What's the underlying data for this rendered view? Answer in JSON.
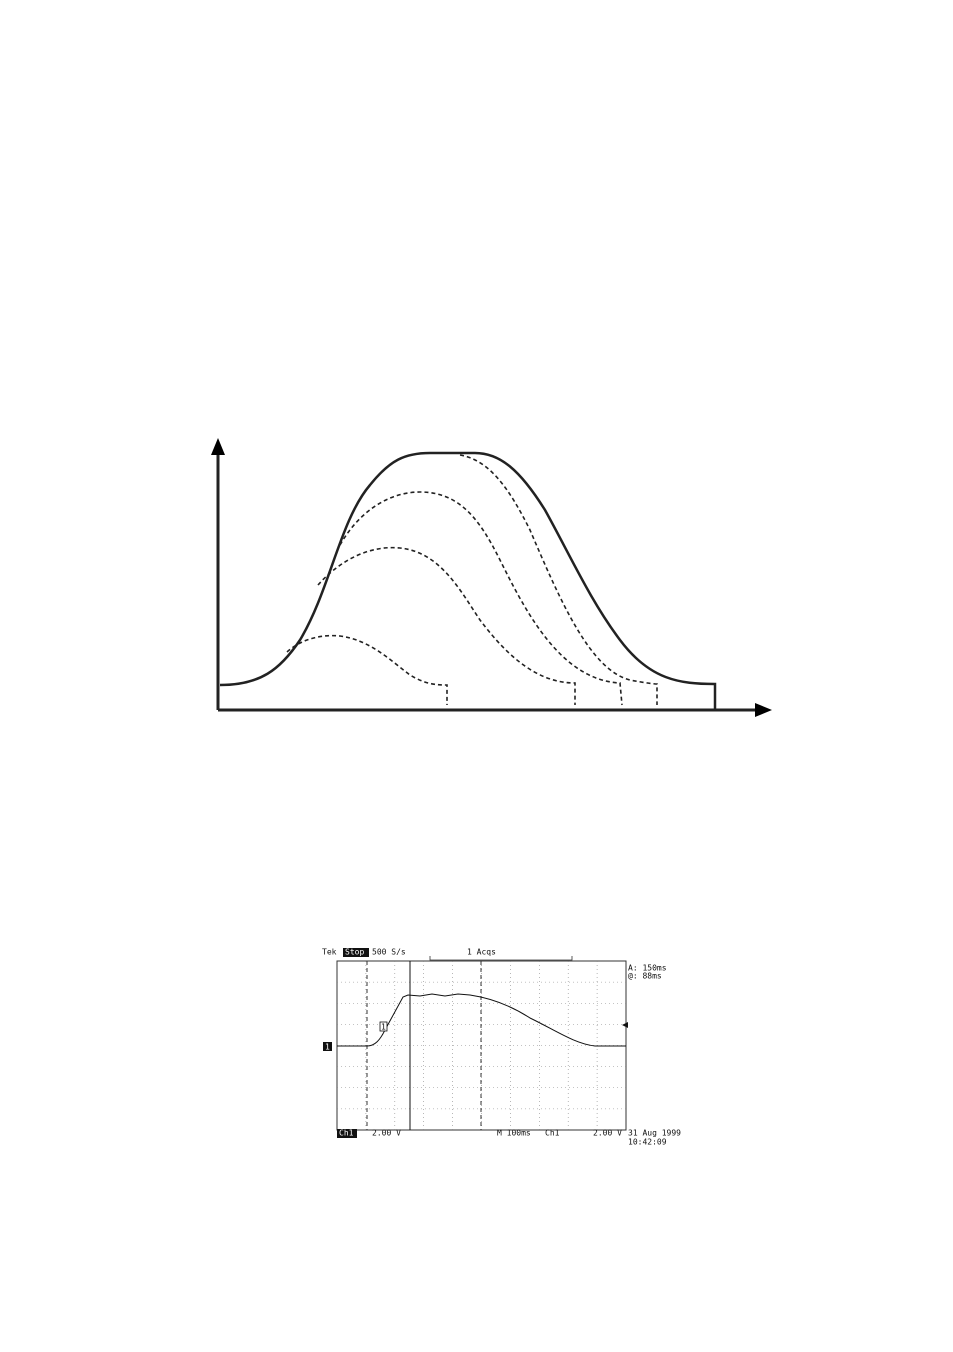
{
  "oscilloscope": {
    "header": {
      "brand": "Tek",
      "status": "Stop",
      "sample_rate": "500 S/s",
      "acquisitions": "1 Acqs"
    },
    "cursor": {
      "delta": "A: 150ms",
      "at": "@: 88ms"
    },
    "markers": {
      "channel": "1",
      "trace": "1"
    },
    "footer": {
      "channel": "Ch1",
      "scale": "2.00 V",
      "timebase": "M 100ms",
      "trigger_source": "Ch1",
      "trigger_level": "2.00 V",
      "date": "31 Aug 1999",
      "time": "10:42:09"
    }
  }
}
